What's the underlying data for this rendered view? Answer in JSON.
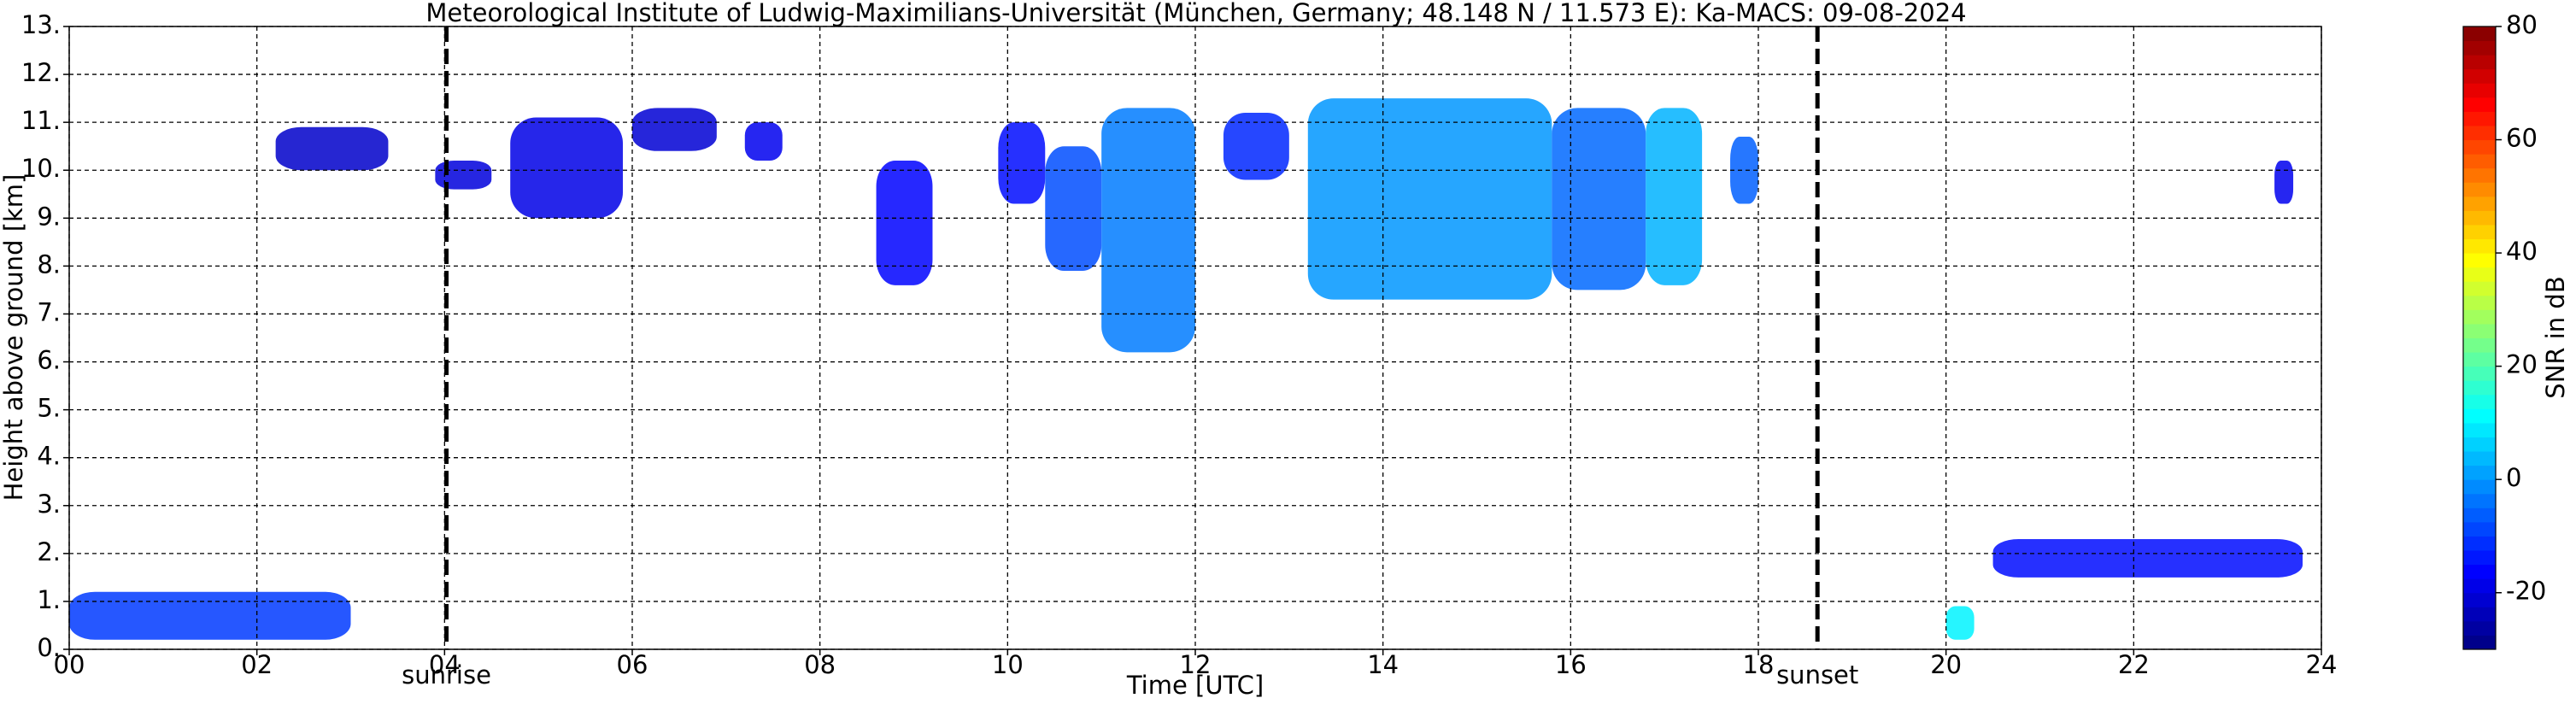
{
  "chart_data": {
    "type": "radar-timeheight",
    "title": "Meteorological Institute of Ludwig-Maximilians-Universität (München, Germany; 48.148 N / 11.573 E):    Ka-MACS: 09-08-2024",
    "xlabel": "Time [UTC]",
    "ylabel": "Height above ground [km]",
    "xlim": [
      0,
      24
    ],
    "ylim": [
      0,
      13
    ],
    "xticks": [
      {
        "value": 0,
        "label": "00"
      },
      {
        "value": 2,
        "label": "02"
      },
      {
        "value": 4,
        "label": "04"
      },
      {
        "value": 6,
        "label": "06"
      },
      {
        "value": 8,
        "label": "08"
      },
      {
        "value": 10,
        "label": "10"
      },
      {
        "value": 12,
        "label": "12"
      },
      {
        "value": 14,
        "label": "14"
      },
      {
        "value": 16,
        "label": "16"
      },
      {
        "value": 18,
        "label": "18"
      },
      {
        "value": 20,
        "label": "20"
      },
      {
        "value": 22,
        "label": "22"
      },
      {
        "value": 24,
        "label": "24"
      }
    ],
    "yticks": [
      {
        "value": 0,
        "label": "0."
      },
      {
        "value": 1,
        "label": "1."
      },
      {
        "value": 2,
        "label": "2."
      },
      {
        "value": 3,
        "label": "3."
      },
      {
        "value": 4,
        "label": "4."
      },
      {
        "value": 5,
        "label": "5."
      },
      {
        "value": 6,
        "label": "6."
      },
      {
        "value": 7,
        "label": "7."
      },
      {
        "value": 8,
        "label": "8."
      },
      {
        "value": 9,
        "label": "9."
      },
      {
        "value": 10,
        "label": "10."
      },
      {
        "value": 11,
        "label": "11."
      },
      {
        "value": 12,
        "label": "12."
      },
      {
        "value": 13,
        "label": "13."
      }
    ],
    "grid": true,
    "markers": [
      {
        "x": 4.02,
        "label": "sunrise"
      },
      {
        "x": 18.63,
        "label": "sunset"
      }
    ],
    "colorbar": {
      "label": "SNR in dB",
      "lim": [
        -30,
        80
      ],
      "ticks": [
        -20,
        0,
        20,
        40,
        60,
        80
      ],
      "colormap": "jet"
    },
    "echoes": [
      {
        "t0": 2.2,
        "t1": 3.4,
        "h0": 10.0,
        "h1": 10.9,
        "snr": -22
      },
      {
        "t0": 3.9,
        "t1": 4.5,
        "h0": 9.6,
        "h1": 10.2,
        "snr": -20
      },
      {
        "t0": 4.7,
        "t1": 5.9,
        "h0": 9.0,
        "h1": 11.1,
        "snr": -19
      },
      {
        "t0": 6.0,
        "t1": 6.9,
        "h0": 10.4,
        "h1": 11.3,
        "snr": -21
      },
      {
        "t0": 7.2,
        "t1": 7.6,
        "h0": 10.2,
        "h1": 11.0,
        "snr": -18
      },
      {
        "t0": 8.6,
        "t1": 9.2,
        "h0": 7.6,
        "h1": 10.2,
        "snr": -16
      },
      {
        "t0": 9.9,
        "t1": 10.4,
        "h0": 9.3,
        "h1": 11.0,
        "snr": -15
      },
      {
        "t0": 10.4,
        "t1": 11.0,
        "h0": 7.9,
        "h1": 10.5,
        "snr": -8
      },
      {
        "t0": 11.0,
        "t1": 12.0,
        "h0": 6.2,
        "h1": 11.3,
        "snr": -3
      },
      {
        "t0": 12.3,
        "t1": 13.0,
        "h0": 9.8,
        "h1": 11.2,
        "snr": -12
      },
      {
        "t0": 13.2,
        "t1": 15.8,
        "h0": 7.3,
        "h1": 11.5,
        "snr": 0
      },
      {
        "t0": 15.8,
        "t1": 16.8,
        "h0": 7.5,
        "h1": 11.3,
        "snr": -5
      },
      {
        "t0": 16.8,
        "t1": 17.4,
        "h0": 7.6,
        "h1": 11.3,
        "snr": 3
      },
      {
        "t0": 17.7,
        "t1": 18.0,
        "h0": 9.3,
        "h1": 10.7,
        "snr": -6
      },
      {
        "t0": 0.0,
        "t1": 3.0,
        "h0": 0.2,
        "h1": 1.2,
        "snr": -10
      },
      {
        "t0": 20.0,
        "t1": 20.3,
        "h0": 0.2,
        "h1": 0.9,
        "snr": 10
      },
      {
        "t0": 20.5,
        "t1": 23.8,
        "h0": 1.5,
        "h1": 2.3,
        "snr": -15
      },
      {
        "t0": 23.5,
        "t1": 23.7,
        "h0": 9.3,
        "h1": 10.2,
        "snr": -18
      }
    ]
  }
}
